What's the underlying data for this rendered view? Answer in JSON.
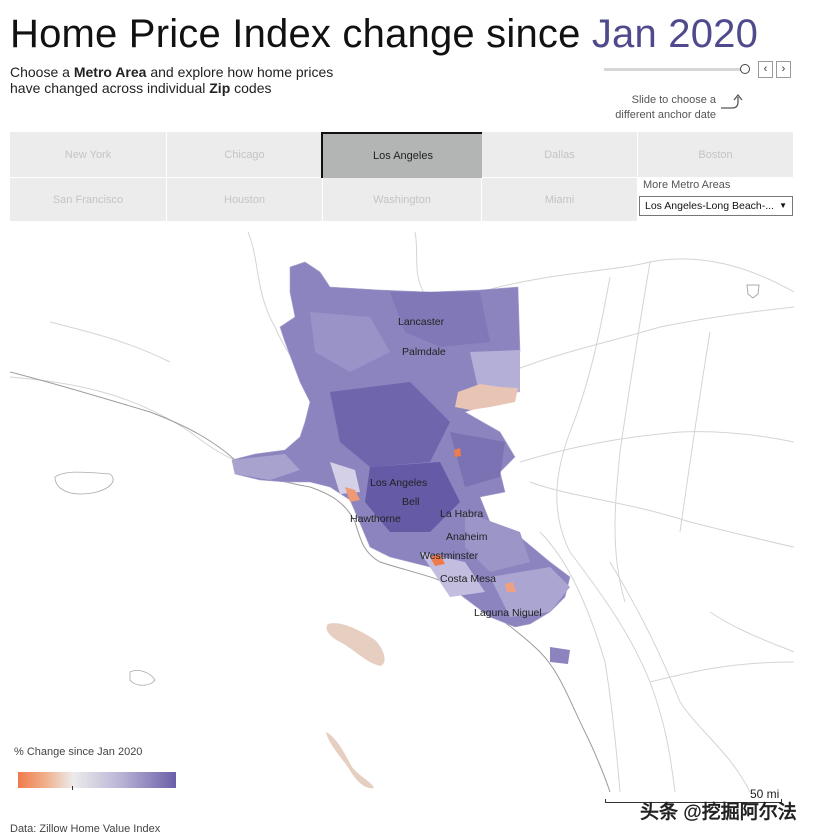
{
  "header": {
    "title_prefix": "Home Price Index change since ",
    "title_anchor": "Jan 2020",
    "subtitle_line1_a": "Choose a ",
    "subtitle_line1_b": "Metro Area",
    "subtitle_line1_c": " and explore how home prices",
    "subtitle_line2_a": "have changed across individual ",
    "subtitle_line2_b": "Zip",
    "subtitle_line2_c": " codes"
  },
  "slider": {
    "hint_line1": "Slide to choose a",
    "hint_line2": "different anchor date",
    "prev_label": "‹",
    "next_label": "›"
  },
  "metros": {
    "row1": [
      "New York",
      "Chicago",
      "Los Angeles",
      "Dallas",
      "Boston"
    ],
    "row2": [
      "San Francisco",
      "Houston",
      "Washington",
      "Miami"
    ],
    "selected": "Los Angeles",
    "more_label": "More Metro Areas",
    "more_value": "Los Angeles-Long Beach-..."
  },
  "map": {
    "cities": [
      "Lancaster",
      "Palmdale",
      "Los Angeles",
      "Bell",
      "Hawthorne",
      "La Habra",
      "Anaheim",
      "Westminster",
      "Costa Mesa",
      "Laguna Niguel"
    ],
    "colors": {
      "high": "#6a5fa8",
      "mid": "#8b82bb",
      "low": "#c8c4de",
      "negative": "#e8c4b4",
      "strong_negative": "#ef7a4c",
      "roads": "#d0d0d0",
      "coast": "#9a9a9a",
      "islands": "#e6cec1"
    },
    "scale_label": "50 mi"
  },
  "legend": {
    "title": "% Change since Jan 2020"
  },
  "footer": {
    "source": "Data: Zillow Home Value Index",
    "watermark": "头条 @挖掘阿尔法"
  }
}
